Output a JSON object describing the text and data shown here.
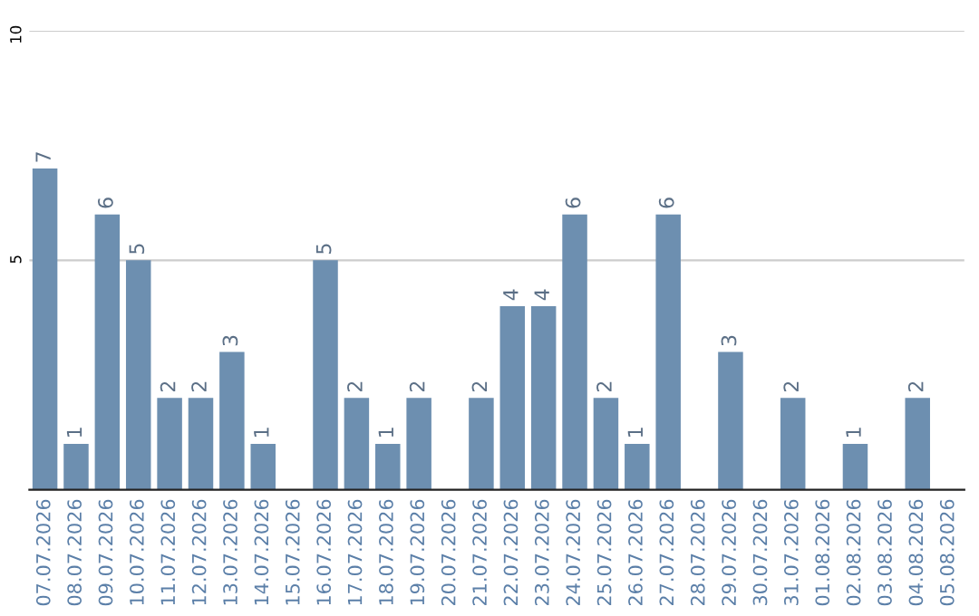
{
  "chart_data": {
    "type": "bar",
    "categories": [
      "07.07.2026",
      "08.07.2026",
      "09.07.2026",
      "10.07.2026",
      "11.07.2026",
      "12.07.2026",
      "13.07.2026",
      "14.07.2026",
      "15.07.2026",
      "16.07.2026",
      "17.07.2026",
      "18.07.2026",
      "19.07.2026",
      "20.07.2026",
      "21.07.2026",
      "22.07.2026",
      "23.07.2026",
      "24.07.2026",
      "25.07.2026",
      "26.07.2026",
      "27.07.2026",
      "28.07.2026",
      "29.07.2026",
      "30.07.2026",
      "31.07.2026",
      "01.08.2026",
      "02.08.2026",
      "03.08.2026",
      "04.08.2026",
      "05.08.2026"
    ],
    "values": [
      7,
      1,
      6,
      5,
      2,
      2,
      3,
      1,
      0,
      5,
      2,
      1,
      2,
      0,
      2,
      4,
      4,
      6,
      2,
      1,
      6,
      0,
      3,
      0,
      2,
      0,
      1,
      0,
      2,
      0
    ],
    "value_labels": [
      "7",
      "1",
      "6",
      "5",
      "2",
      "2",
      "3",
      "1",
      null,
      "5",
      "2",
      "1",
      "2",
      null,
      "2",
      "4",
      "4",
      "6",
      "2",
      "1",
      "6",
      null,
      "3",
      null,
      "2",
      null,
      "1",
      null,
      "2",
      null
    ],
    "color": "#6d8fb0",
    "ylim": [
      0,
      10
    ],
    "yticks": [
      5,
      10
    ],
    "grid": "y",
    "legend": false
  }
}
